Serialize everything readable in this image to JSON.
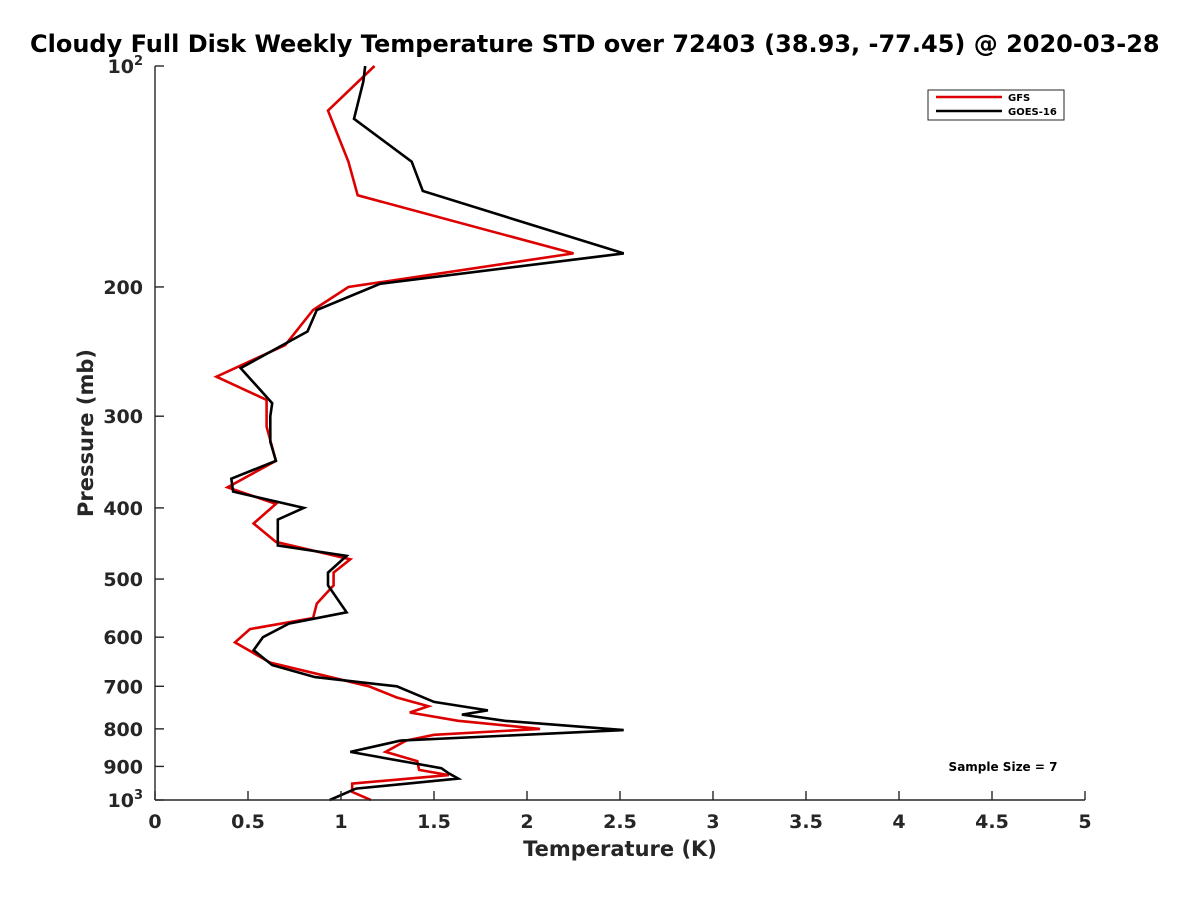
{
  "chart_data": {
    "type": "line",
    "title": "Cloudy Full Disk Weekly Temperature STD over 72403 (38.93, -77.45) @ 2020-03-28",
    "xlabel": "Temperature (K)",
    "ylabel": "Pressure (mb)",
    "xlim": [
      0,
      5
    ],
    "ylim": [
      100,
      1000
    ],
    "y_scale": "log",
    "y_reversed": true,
    "grid": false,
    "legend_position": "top-right",
    "x_ticks": [
      "0",
      "0.5",
      "1",
      "1.5",
      "2",
      "2.5",
      "3",
      "3.5",
      "4",
      "4.5",
      "5"
    ],
    "y_ticks": [
      {
        "value": 100,
        "base": "10",
        "exp": "2"
      },
      {
        "value": 200,
        "label": "200"
      },
      {
        "value": 300,
        "label": "300"
      },
      {
        "value": 400,
        "label": "400"
      },
      {
        "value": 500,
        "label": "500"
      },
      {
        "value": 600,
        "label": "600"
      },
      {
        "value": 700,
        "label": "700"
      },
      {
        "value": 800,
        "label": "800"
      },
      {
        "value": 900,
        "label": "900"
      },
      {
        "value": 1000,
        "base": "10",
        "exp": "3"
      }
    ],
    "annotation": "Sample Size = 7",
    "series": [
      {
        "name": "GFS",
        "color": "#dd0000",
        "points": [
          [
            1.18,
            100
          ],
          [
            0.93,
            115
          ],
          [
            1.04,
            135
          ],
          [
            1.09,
            150
          ],
          [
            2.25,
            180
          ],
          [
            1.04,
            200
          ],
          [
            0.85,
            215
          ],
          [
            0.7,
            240
          ],
          [
            0.33,
            265
          ],
          [
            0.6,
            285
          ],
          [
            0.6,
            310
          ],
          [
            0.65,
            345
          ],
          [
            0.39,
            375
          ],
          [
            0.65,
            395
          ],
          [
            0.53,
            420
          ],
          [
            0.65,
            445
          ],
          [
            1.05,
            470
          ],
          [
            0.96,
            490
          ],
          [
            0.96,
            510
          ],
          [
            0.87,
            540
          ],
          [
            0.85,
            565
          ],
          [
            0.51,
            585
          ],
          [
            0.43,
            610
          ],
          [
            0.62,
            650
          ],
          [
            1.15,
            700
          ],
          [
            1.3,
            725
          ],
          [
            1.47,
            745
          ],
          [
            1.37,
            760
          ],
          [
            1.63,
            780
          ],
          [
            2.07,
            800
          ],
          [
            1.5,
            815
          ],
          [
            1.35,
            830
          ],
          [
            1.24,
            860
          ],
          [
            1.41,
            885
          ],
          [
            1.42,
            910
          ],
          [
            1.58,
            925
          ],
          [
            1.06,
            950
          ],
          [
            1.06,
            975
          ],
          [
            1.16,
            1000
          ]
        ]
      },
      {
        "name": "GOES-16",
        "color": "#000000",
        "points": [
          [
            1.13,
            100
          ],
          [
            1.12,
            105
          ],
          [
            1.07,
            118
          ],
          [
            1.38,
            135
          ],
          [
            1.44,
            148
          ],
          [
            2.52,
            180
          ],
          [
            1.21,
            198
          ],
          [
            0.87,
            215
          ],
          [
            0.82,
            230
          ],
          [
            0.46,
            258
          ],
          [
            0.63,
            288
          ],
          [
            0.62,
            300
          ],
          [
            0.62,
            325
          ],
          [
            0.65,
            345
          ],
          [
            0.41,
            365
          ],
          [
            0.42,
            380
          ],
          [
            0.8,
            400
          ],
          [
            0.66,
            415
          ],
          [
            0.66,
            450
          ],
          [
            1.03,
            465
          ],
          [
            0.93,
            490
          ],
          [
            0.93,
            510
          ],
          [
            1.03,
            555
          ],
          [
            0.72,
            575
          ],
          [
            0.58,
            600
          ],
          [
            0.53,
            625
          ],
          [
            0.63,
            655
          ],
          [
            0.86,
            680
          ],
          [
            1.3,
            700
          ],
          [
            1.5,
            735
          ],
          [
            1.79,
            755
          ],
          [
            1.65,
            765
          ],
          [
            1.88,
            780
          ],
          [
            2.52,
            803
          ],
          [
            1.32,
            830
          ],
          [
            1.05,
            860
          ],
          [
            1.54,
            905
          ],
          [
            1.58,
            920
          ],
          [
            1.63,
            935
          ],
          [
            1.08,
            965
          ],
          [
            0.94,
            1000
          ]
        ]
      }
    ]
  }
}
